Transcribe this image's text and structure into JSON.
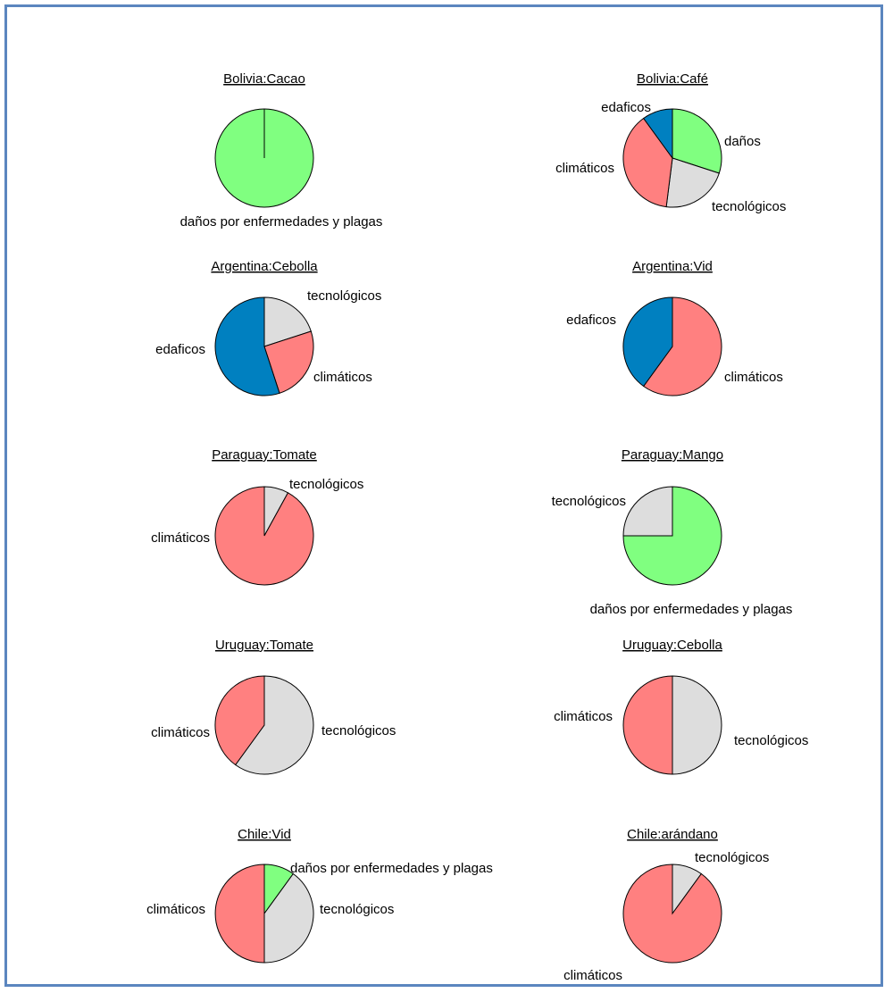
{
  "colors": {
    "climaticos": "#ff8080",
    "tecnologicos": "#dddddd",
    "edaficos": "#0080c0",
    "danos": "#80ff80",
    "frame": "#5b86bf",
    "outline": "#000000"
  },
  "chart_data": [
    {
      "type": "pie",
      "title": "Bolivia:Cacao",
      "slices": [
        {
          "label": "daños por enfermedades y plagas",
          "value": 100,
          "color_key": "danos"
        }
      ]
    },
    {
      "type": "pie",
      "title": "Bolivia:Café",
      "slices": [
        {
          "label": "daños",
          "value": 30,
          "color_key": "danos"
        },
        {
          "label": "tecnológicos",
          "value": 22,
          "color_key": "tecnologicos"
        },
        {
          "label": "climáticos",
          "value": 38,
          "color_key": "climaticos"
        },
        {
          "label": "edaficos",
          "value": 10,
          "color_key": "edaficos"
        }
      ]
    },
    {
      "type": "pie",
      "title": "Argentina:Cebolla",
      "slices": [
        {
          "label": "tecnológicos",
          "value": 20,
          "color_key": "tecnologicos"
        },
        {
          "label": "climáticos",
          "value": 25,
          "color_key": "climaticos"
        },
        {
          "label": "edaficos",
          "value": 55,
          "color_key": "edaficos"
        }
      ]
    },
    {
      "type": "pie",
      "title": "Argentina:Vid",
      "slices": [
        {
          "label": "climáticos",
          "value": 60,
          "color_key": "climaticos"
        },
        {
          "label": "edaficos",
          "value": 40,
          "color_key": "edaficos"
        }
      ]
    },
    {
      "type": "pie",
      "title": "Paraguay:Tomate",
      "slices": [
        {
          "label": "tecnológicos",
          "value": 8,
          "color_key": "tecnologicos"
        },
        {
          "label": "climáticos",
          "value": 92,
          "color_key": "climaticos"
        }
      ]
    },
    {
      "type": "pie",
      "title": "Paraguay:Mango",
      "slices": [
        {
          "label": "daños por enfermedades y plagas",
          "value": 75,
          "color_key": "danos"
        },
        {
          "label": "tecnológicos",
          "value": 25,
          "color_key": "tecnologicos"
        }
      ]
    },
    {
      "type": "pie",
      "title": "Uruguay:Tomate",
      "slices": [
        {
          "label": "tecnológicos",
          "value": 60,
          "color_key": "tecnologicos"
        },
        {
          "label": "climáticos",
          "value": 40,
          "color_key": "climaticos"
        }
      ]
    },
    {
      "type": "pie",
      "title": "Uruguay:Cebolla",
      "slices": [
        {
          "label": "tecnológicos",
          "value": 50,
          "color_key": "tecnologicos"
        },
        {
          "label": "climáticos",
          "value": 50,
          "color_key": "climaticos"
        }
      ]
    },
    {
      "type": "pie",
      "title": " Chile:Vid",
      "slices": [
        {
          "label": "daños por enfermedades y plagas",
          "value": 10,
          "color_key": "danos"
        },
        {
          "label": "tecnológicos",
          "value": 40,
          "color_key": "tecnologicos"
        },
        {
          "label": "climáticos",
          "value": 50,
          "color_key": "climaticos"
        }
      ]
    },
    {
      "type": "pie",
      "title": "Chile:arándano",
      "slices": [
        {
          "label": "tecnológicos",
          "value": 10,
          "color_key": "tecnologicos"
        },
        {
          "label": "climáticos",
          "value": 90,
          "color_key": "climaticos"
        }
      ]
    }
  ]
}
